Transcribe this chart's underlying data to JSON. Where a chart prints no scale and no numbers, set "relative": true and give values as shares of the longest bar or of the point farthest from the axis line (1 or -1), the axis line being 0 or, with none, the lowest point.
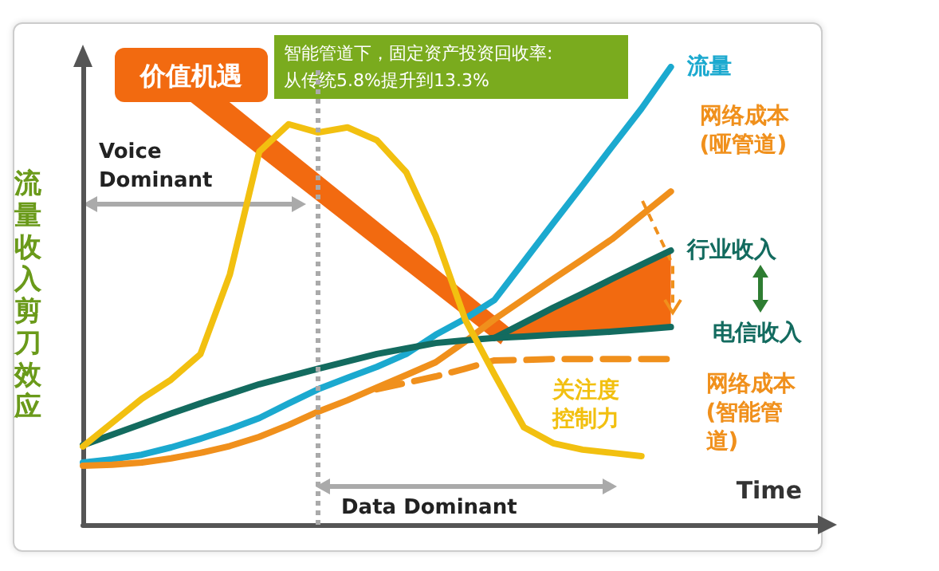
{
  "chart_data": {
    "type": "line",
    "relative": true,
    "ylabel": "流量收入剪刀效应",
    "xlabel": "Time",
    "categories": [
      null,
      null,
      null,
      null,
      null,
      null,
      null,
      null,
      null,
      null,
      null,
      null,
      null,
      null,
      null,
      null,
      null,
      null,
      null,
      null,
      null,
      null,
      null,
      null,
      null,
      null
    ],
    "legend": false,
    "marker": "none",
    "series": [
      {
        "name": "流量",
        "color": "#1ba9cf",
        "values": [
          0.136,
          0.143,
          0.153,
          0.169,
          0.188,
          0.209,
          0.233,
          0.265,
          0.296,
          0.321,
          0.345,
          0.373,
          0.415,
          0.45,
          0.491,
          0.575,
          0.659,
          0.742,
          0.826,
          0.909,
          1,
          null,
          null,
          null,
          null,
          null
        ]
      },
      {
        "name": "网络成本(哑管道)",
        "color": "#f0901c",
        "values": [
          0.129,
          0.131,
          0.136,
          0.145,
          0.157,
          0.172,
          0.192,
          0.218,
          0.247,
          0.272,
          0.3,
          0.327,
          0.355,
          0.4,
          0.449,
          0.493,
          0.537,
          0.58,
          0.624,
          0.676,
          0.728,
          null,
          null,
          null,
          null,
          null
        ]
      },
      {
        "name": "行业收入",
        "color": "#136b5f",
        "values": [
          null,
          null,
          null,
          null,
          null,
          null,
          null,
          null,
          null,
          null,
          null,
          null,
          null,
          null,
          0.408,
          0.441,
          0.474,
          0.505,
          0.537,
          0.568,
          0.599,
          null,
          null,
          null,
          null,
          null
        ]
      },
      {
        "name": "电信收入",
        "color": "#136b5f",
        "values": [
          0.174,
          0.197,
          0.22,
          0.243,
          0.265,
          0.286,
          0.307,
          0.324,
          0.341,
          0.357,
          0.373,
          0.385,
          0.397,
          0.403,
          0.408,
          0.411,
          0.415,
          0.418,
          0.422,
          0.427,
          0.432,
          null,
          null,
          null,
          null,
          null
        ]
      },
      {
        "name": "网络成本(智能管道)",
        "color": "#f0901c",
        "line_style": "dashed",
        "values": [
          null,
          null,
          null,
          null,
          null,
          null,
          null,
          null,
          null,
          null,
          0.296,
          0.31,
          0.324,
          0.341,
          0.359,
          0.36,
          0.362,
          0.362,
          0.362,
          0.362,
          0.362,
          null,
          null,
          null,
          null,
          null
        ]
      },
      {
        "name": "关注度控制力",
        "color": "#f2c010",
        "values": [
          0.171,
          0.223,
          0.275,
          0.317,
          0.373,
          0.547,
          0.815,
          0.875,
          0.857,
          0.868,
          0.84,
          0.77,
          0.631,
          0.449,
          0.328,
          0.213,
          0.178,
          0.164,
          0.157,
          0.15,
          null,
          null,
          null,
          null,
          null,
          null
        ]
      }
    ],
    "annotations": [
      "价值机遇",
      "智能管道下，固定资产投资回收率:\n从传统5.8%提升到13.3%",
      "Voice\nDominant",
      "Data Dominant"
    ]
  }
}
